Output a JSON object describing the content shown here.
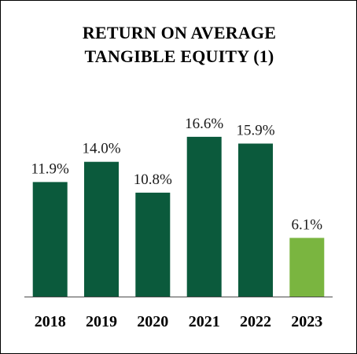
{
  "chart_data": {
    "type": "bar",
    "title_lines": [
      "RETURN ON AVERAGE",
      "TANGIBLE EQUITY (1)"
    ],
    "categories": [
      "2018",
      "2019",
      "2020",
      "2021",
      "2022",
      "2023"
    ],
    "values": [
      11.9,
      14.0,
      10.8,
      16.6,
      15.9,
      6.1
    ],
    "value_labels": [
      "11.9%",
      "14.0%",
      "10.8%",
      "16.6%",
      "15.9%",
      "6.1%"
    ],
    "ylim": [
      0,
      18.8
    ],
    "grid": false,
    "legend": "none",
    "colors": {
      "bar": "#0b5a3c",
      "highlight_bar": "#7ab540",
      "highlight_category": "2023",
      "axis": "#4a4a4a"
    }
  }
}
